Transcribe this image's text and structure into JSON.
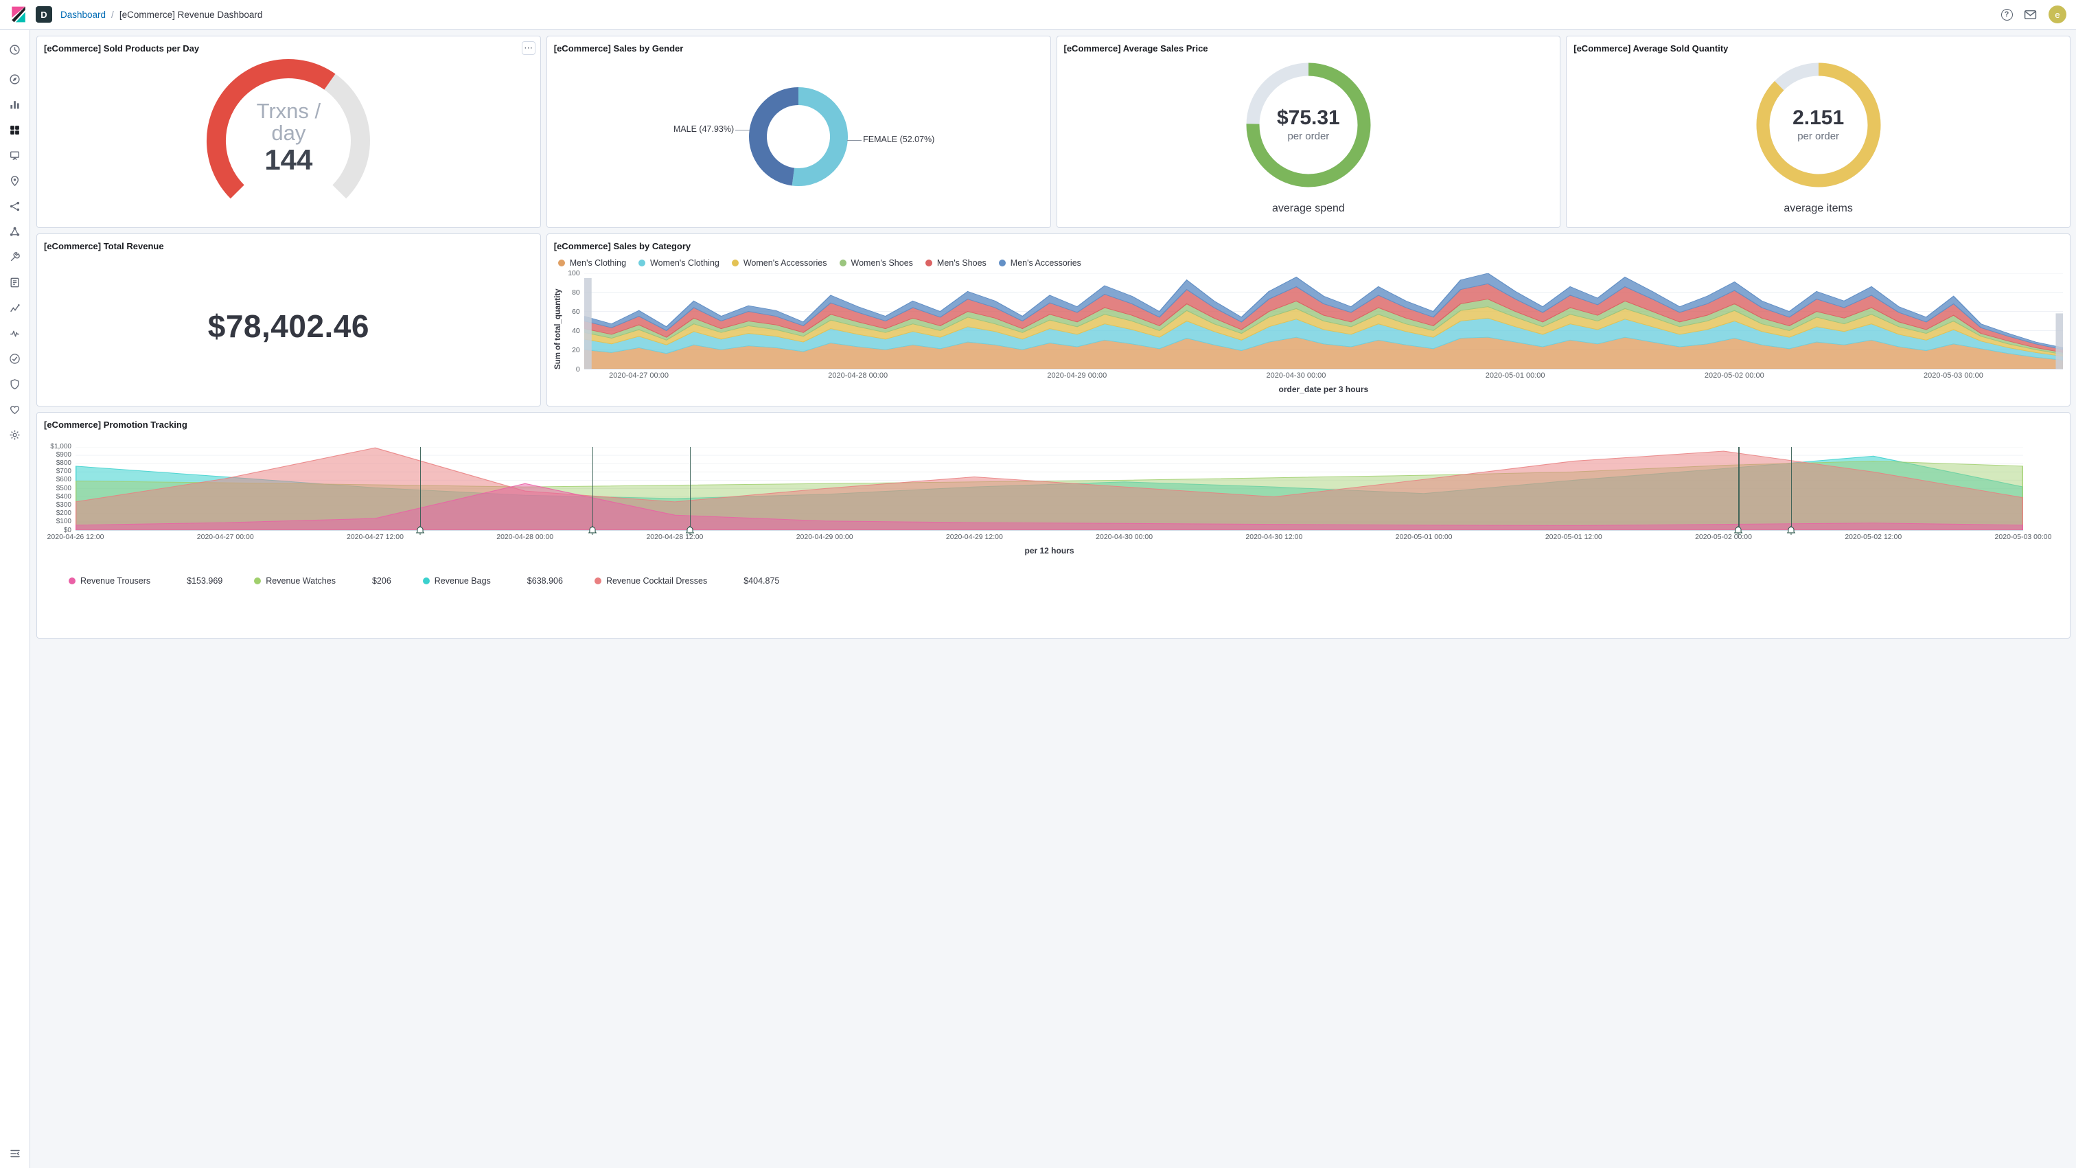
{
  "header": {
    "breadcrumb": {
      "root": "Dashboard",
      "separator": "/",
      "current": "[eCommerce] Revenue Dashboard"
    },
    "space_badge": "D",
    "help_glyph": "?",
    "avatar_initial": "e"
  },
  "sidebar": {
    "active": "dashboard",
    "icons": [
      "recently-viewed",
      "discover",
      "visualize",
      "dashboard",
      "canvas",
      "maps",
      "machine-learning",
      "graph",
      "dev-tools",
      "logs",
      "metrics",
      "apm",
      "uptime",
      "siem",
      "stack-monitoring",
      "management"
    ]
  },
  "panels": {
    "sold_products": {
      "title": "[eCommerce] Sold Products per Day",
      "center_label_line1": "Trxns /",
      "center_label_line2": "day",
      "value": "144",
      "fraction": 0.63,
      "color": "#E24D42",
      "track": "#E4E4E4"
    },
    "sales_by_gender": {
      "title": "[eCommerce] Sales by Gender",
      "slices": [
        {
          "label": "FEMALE (52.07%)",
          "pct": 52.07,
          "color": "#74C8DB"
        },
        {
          "label": "MALE (47.93%)",
          "pct": 47.93,
          "color": "#4F74AC"
        }
      ]
    },
    "avg_price": {
      "title": "[eCommerce] Average Sales Price",
      "value": "$75.31",
      "sub": "per order",
      "caption": "average spend",
      "fraction": 0.7531,
      "color": "#7CB65B",
      "track": "#DFE5EC"
    },
    "avg_qty": {
      "title": "[eCommerce] Average Sold Quantity",
      "value": "2.151",
      "sub": "per order",
      "caption": "average items",
      "fraction": 0.875,
      "color": "#E8C55E",
      "track": "#DFE5EC"
    },
    "total_revenue": {
      "title": "[eCommerce] Total Revenue",
      "value": "$78,402.46"
    },
    "sales_by_category": {
      "title": "[eCommerce] Sales by Category",
      "chart": {
        "type": "area-stacked",
        "ylabel": "Sum of total_quantity",
        "xlabel": "order_date per 3 hours",
        "ymax": 100,
        "yticks": [
          0,
          20,
          40,
          60,
          80,
          100
        ],
        "xticks": [
          {
            "label": "2020-04-27 00:00",
            "idx": 2
          },
          {
            "label": "2020-04-28 00:00",
            "idx": 10
          },
          {
            "label": "2020-04-29 00:00",
            "idx": 18
          },
          {
            "label": "2020-04-30 00:00",
            "idx": 26
          },
          {
            "label": "2020-05-01 00:00",
            "idx": 34
          },
          {
            "label": "2020-05-02 00:00",
            "idx": 42
          },
          {
            "label": "2020-05-03 00:00",
            "idx": 50
          }
        ],
        "series": [
          {
            "name": "Men's Clothing",
            "color": "#E0A064",
            "values": [
              20,
              17,
              22,
              16,
              25,
              20,
              24,
              22,
              18,
              27,
              23,
              20,
              25,
              21,
              28,
              25,
              20,
              27,
              23,
              30,
              26,
              21,
              32,
              25,
              19,
              28,
              33,
              26,
              23,
              30,
              25,
              21,
              32,
              33,
              28,
              23,
              30,
              26,
              33,
              28,
              23,
              26,
              32,
              25,
              21,
              28,
              25,
              30,
              23,
              19,
              26,
              21,
              16,
              12,
              9
            ]
          },
          {
            "name": "Women's Clothing",
            "color": "#6FCFDE",
            "values": [
              11,
              9,
              12,
              9,
              14,
              11,
              13,
              12,
              10,
              15,
              13,
              11,
              14,
              12,
              16,
              14,
              11,
              15,
              13,
              17,
              15,
              12,
              18,
              14,
              11,
              16,
              19,
              15,
              13,
              17,
              14,
              12,
              18,
              20,
              16,
              13,
              17,
              15,
              19,
              16,
              13,
              15,
              18,
              14,
              12,
              16,
              14,
              17,
              13,
              11,
              15,
              8,
              6,
              5,
              4
            ]
          },
          {
            "name": "Women's Accessories",
            "color": "#E3C254",
            "values": [
              7,
              6,
              7,
              5,
              8,
              7,
              8,
              7,
              6,
              9,
              8,
              7,
              8,
              7,
              10,
              8,
              7,
              9,
              8,
              10,
              9,
              7,
              11,
              8,
              7,
              10,
              11,
              9,
              8,
              10,
              8,
              7,
              11,
              12,
              10,
              8,
              10,
              9,
              11,
              10,
              8,
              9,
              11,
              8,
              7,
              10,
              8,
              10,
              8,
              7,
              9,
              5,
              4,
              3,
              2
            ]
          },
          {
            "name": "Women's Shoes",
            "color": "#9BC57E",
            "values": [
              4,
              4,
              5,
              3,
              6,
              4,
              5,
              5,
              4,
              6,
              5,
              4,
              6,
              5,
              6,
              6,
              4,
              6,
              5,
              7,
              6,
              5,
              7,
              6,
              4,
              6,
              8,
              6,
              5,
              7,
              6,
              5,
              7,
              8,
              6,
              5,
              7,
              6,
              8,
              6,
              5,
              6,
              7,
              6,
              5,
              6,
              6,
              7,
              5,
              4,
              6,
              3,
              3,
              2,
              2
            ]
          },
          {
            "name": "Men's Shoes",
            "color": "#DB6363",
            "values": [
              8,
              7,
              9,
              7,
              11,
              8,
              10,
              9,
              7,
              12,
              10,
              8,
              11,
              9,
              13,
              11,
              8,
              12,
              10,
              14,
              12,
              9,
              15,
              11,
              8,
              13,
              15,
              12,
              10,
              13,
              11,
              9,
              15,
              16,
              13,
              10,
              13,
              11,
              15,
              13,
              10,
              12,
              14,
              11,
              9,
              13,
              11,
              13,
              10,
              8,
              12,
              6,
              5,
              4,
              3
            ]
          },
          {
            "name": "Men's Accessories",
            "color": "#6390C6",
            "values": [
              5,
              4,
              6,
              4,
              7,
              5,
              6,
              6,
              4,
              8,
              6,
              5,
              7,
              6,
              8,
              7,
              5,
              8,
              6,
              9,
              8,
              6,
              10,
              7,
              5,
              8,
              10,
              8,
              6,
              9,
              7,
              6,
              10,
              11,
              8,
              6,
              9,
              7,
              10,
              8,
              6,
              8,
              9,
              7,
              6,
              8,
              7,
              9,
              6,
              5,
              8,
              4,
              3,
              2,
              2
            ]
          }
        ]
      }
    },
    "promotion": {
      "title": "[eCommerce] Promotion Tracking",
      "chart": {
        "type": "area",
        "xlabel": "per 12 hours",
        "ymax": 1000,
        "ytick_labels": [
          "$0",
          "$100",
          "$200",
          "$300",
          "$400",
          "$500",
          "$600",
          "$700",
          "$800",
          "$900",
          "$1,000"
        ],
        "xtick_labels": [
          "2020-04-26 12:00",
          "2020-04-27 00:00",
          "2020-04-27 12:00",
          "2020-04-28 00:00",
          "2020-04-28 12:00",
          "2020-04-29 00:00",
          "2020-04-29 12:00",
          "2020-04-30 00:00",
          "2020-04-30 12:00",
          "2020-05-01 00:00",
          "2020-05-01 12:00",
          "2020-05-02 00:00",
          "2020-05-02 12:00",
          "2020-05-03 00:00"
        ],
        "annotations": [
          2.3,
          3.45,
          4.1,
          11.1,
          11.45
        ],
        "series": [
          {
            "name": "Revenue Trousers",
            "value_label": "$153.969",
            "color": "#EA60A6",
            "values": [
              60,
              90,
              140,
              560,
              180,
              110,
              90,
              80,
              70,
              60,
              55,
              70,
              85,
              60
            ]
          },
          {
            "name": "Revenue Watches",
            "value_label": "$206",
            "color": "#A0CF6C",
            "values": [
              590,
              570,
              545,
              520,
              540,
              560,
              580,
              600,
              630,
              660,
              700,
              780,
              830,
              770
            ]
          },
          {
            "name": "Revenue Bags",
            "value_label": "$638.906",
            "color": "#3BD1CE",
            "values": [
              770,
              640,
              510,
              420,
              380,
              430,
              520,
              580,
              520,
              440,
              600,
              740,
              890,
              520
            ]
          },
          {
            "name": "Revenue Cocktail Dresses",
            "value_label": "$404.875",
            "color": "#E97F80",
            "values": [
              340,
              620,
              990,
              470,
              340,
              500,
              640,
              520,
              400,
              610,
              830,
              950,
              700,
              390
            ]
          }
        ]
      }
    }
  }
}
